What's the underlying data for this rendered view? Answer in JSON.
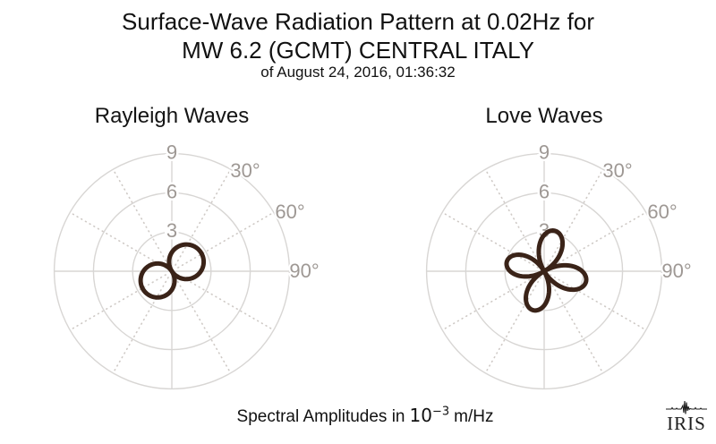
{
  "header": {
    "title_line1": "Surface-Wave Radiation Pattern at 0.02Hz for",
    "title_line2": "MW 6.2 (GCMT) CENTRAL ITALY",
    "title_line3": "of August 24, 2016, 01:36:32"
  },
  "caption": {
    "prefix": "Spectral Amplitudes in",
    "math_base": "10",
    "math_exponent": "−3",
    "suffix": "m/Hz"
  },
  "logo": {
    "text": "IRIS",
    "icon": "seismogram-trace-icon"
  },
  "colors": {
    "background": "#ffffff",
    "title_text": "#111111",
    "pattern_stroke": "#3a2318",
    "grid_line": "#d8d6d4",
    "grid_dotted": "#cfcac6",
    "polar_label": "#9e9894",
    "logo_text": "#1d1d1d"
  },
  "chart_data": [
    {
      "type": "polar-radiation-pattern",
      "title": "Rayleigh Waves",
      "r_ticks": [
        3,
        6,
        9
      ],
      "r_max": 9,
      "r_units": "10⁻³ m/Hz",
      "angle_ticks_deg": [
        30,
        60,
        90
      ],
      "angle_tick_labels": [
        "30°",
        "60°",
        "90°"
      ],
      "angle_grid_step_deg": 30,
      "grid": "rings at 3/6/9, solid cross at 0/90/180/270, dotted radials every 30°",
      "pattern": {
        "kind": "two_lobe",
        "lobes": [
          {
            "azimuth_deg": 57,
            "amplitude": 2.65
          },
          {
            "azimuth_deg": 237,
            "amplitude": 2.6
          }
        ]
      }
    },
    {
      "type": "polar-radiation-pattern",
      "title": "Love Waves",
      "r_ticks": [
        3,
        6,
        9
      ],
      "r_max": 9,
      "r_units": "10⁻³ m/Hz",
      "angle_ticks_deg": [
        30,
        60,
        90
      ],
      "angle_tick_labels": [
        "30°",
        "60°",
        "90°"
      ],
      "angle_grid_step_deg": 30,
      "grid": "rings at 3/6/9, solid cross at 0/90/180/270, dotted radials every 30°",
      "pattern": {
        "kind": "four_lobe",
        "lobes": [
          {
            "azimuth_deg": 15,
            "amplitude": 3.2
          },
          {
            "azimuth_deg": 104,
            "amplitude": 3.3
          },
          {
            "azimuth_deg": 196,
            "amplitude": 3.1
          },
          {
            "azimuth_deg": 284,
            "amplitude": 2.95
          }
        ]
      }
    }
  ]
}
